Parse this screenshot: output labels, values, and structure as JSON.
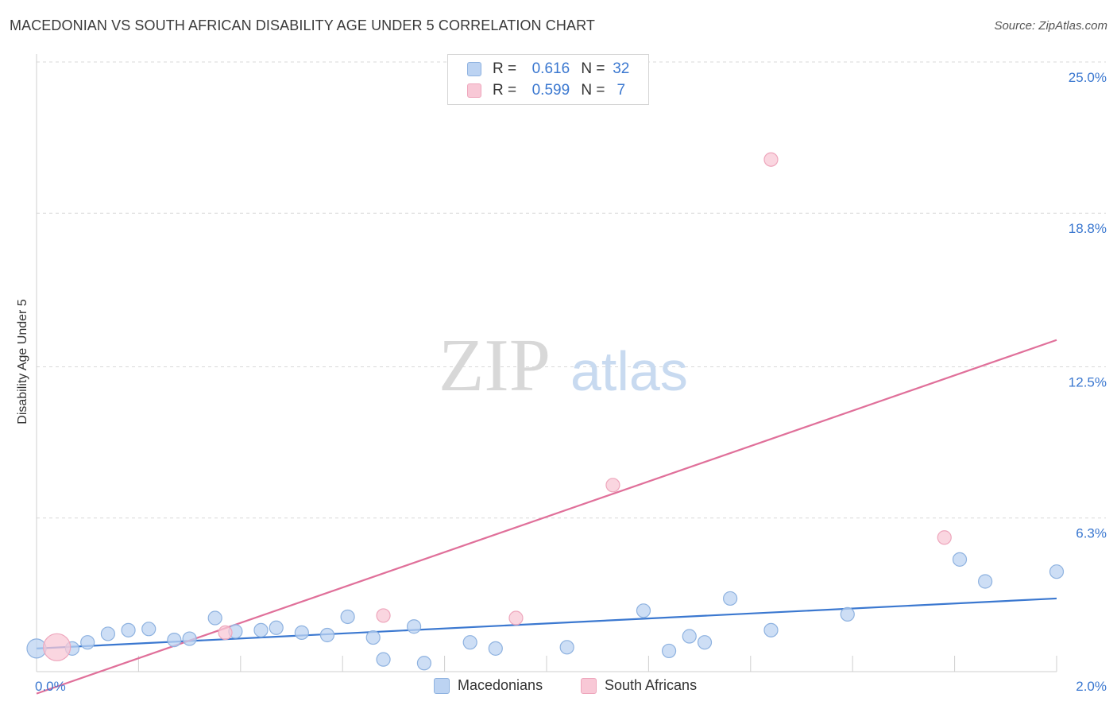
{
  "title": "MACEDONIAN VS SOUTH AFRICAN DISABILITY AGE UNDER 5 CORRELATION CHART",
  "source": "Source: ZipAtlas.com",
  "watermark": {
    "zip": "ZIP",
    "atlas": "atlas"
  },
  "colors": {
    "blue": "#3b78d0",
    "blue_fill": "#bcd3f2",
    "blue_stroke": "#8eb2e0",
    "pink": "#e0709a",
    "pink_fill": "#f8c8d6",
    "pink_stroke": "#eea6bc",
    "grid": "#d9d9d9",
    "tick_label": "#3b78d0"
  },
  "stats": {
    "rows": [
      {
        "r_label": "R =",
        "r_value": "0.616",
        "n_label": "N =",
        "n_value": "32"
      },
      {
        "r_label": "R =",
        "r_value": "0.599",
        "n_label": "N =",
        "n_value": "7"
      }
    ]
  },
  "legend": {
    "macedonians": "Macedonians",
    "south_africans": "South Africans"
  },
  "chart_data": {
    "type": "scatter",
    "title": "MACEDONIAN VS SOUTH AFRICAN DISABILITY AGE UNDER 5 CORRELATION CHART",
    "xlabel": "",
    "ylabel": "Disability Age Under 5",
    "xlim": [
      0.0,
      2.0
    ],
    "ylim": [
      0.0,
      25.0
    ],
    "x_tick_labels": [
      "0.0%",
      "2.0%"
    ],
    "y_ticks": [
      6.3,
      12.5,
      18.8,
      25.0
    ],
    "y_tick_labels": [
      "6.3%",
      "12.5%",
      "18.8%",
      "25.0%"
    ],
    "grid": true,
    "series": [
      {
        "name": "Macedonians",
        "points": [
          {
            "x": 0.0,
            "y": 0.95,
            "size": "large"
          },
          {
            "x": 0.07,
            "y": 0.95
          },
          {
            "x": 0.1,
            "y": 1.2
          },
          {
            "x": 0.14,
            "y": 1.55
          },
          {
            "x": 0.18,
            "y": 1.7
          },
          {
            "x": 0.22,
            "y": 1.75
          },
          {
            "x": 0.27,
            "y": 1.3
          },
          {
            "x": 0.3,
            "y": 1.35
          },
          {
            "x": 0.35,
            "y": 2.2
          },
          {
            "x": 0.39,
            "y": 1.65
          },
          {
            "x": 0.44,
            "y": 1.7
          },
          {
            "x": 0.47,
            "y": 1.8
          },
          {
            "x": 0.52,
            "y": 1.6
          },
          {
            "x": 0.57,
            "y": 1.5
          },
          {
            "x": 0.61,
            "y": 2.25
          },
          {
            "x": 0.66,
            "y": 1.4
          },
          {
            "x": 0.68,
            "y": 0.5
          },
          {
            "x": 0.74,
            "y": 1.85
          },
          {
            "x": 0.76,
            "y": 0.35
          },
          {
            "x": 0.85,
            "y": 1.2
          },
          {
            "x": 0.9,
            "y": 0.95
          },
          {
            "x": 1.04,
            "y": 1.0
          },
          {
            "x": 1.19,
            "y": 2.5
          },
          {
            "x": 1.24,
            "y": 0.85
          },
          {
            "x": 1.28,
            "y": 1.45
          },
          {
            "x": 1.31,
            "y": 1.2
          },
          {
            "x": 1.36,
            "y": 3.0
          },
          {
            "x": 1.44,
            "y": 1.7
          },
          {
            "x": 1.59,
            "y": 2.35
          },
          {
            "x": 1.81,
            "y": 4.6
          },
          {
            "x": 1.86,
            "y": 3.7
          },
          {
            "x": 2.0,
            "y": 4.1
          }
        ],
        "trend": {
          "x0": 0.0,
          "y0": 0.95,
          "x1": 2.0,
          "y1": 3.0
        }
      },
      {
        "name": "South Africans",
        "points": [
          {
            "x": 0.04,
            "y": 1.0,
            "size": "large"
          },
          {
            "x": 0.37,
            "y": 1.6
          },
          {
            "x": 0.68,
            "y": 2.3
          },
          {
            "x": 0.94,
            "y": 2.2
          },
          {
            "x": 1.13,
            "y": 7.65
          },
          {
            "x": 1.44,
            "y": 21.0
          },
          {
            "x": 1.78,
            "y": 5.5
          }
        ],
        "trend": {
          "x0": 0.0,
          "y0": -0.9,
          "x1": 2.0,
          "y1": 13.6
        }
      }
    ]
  }
}
